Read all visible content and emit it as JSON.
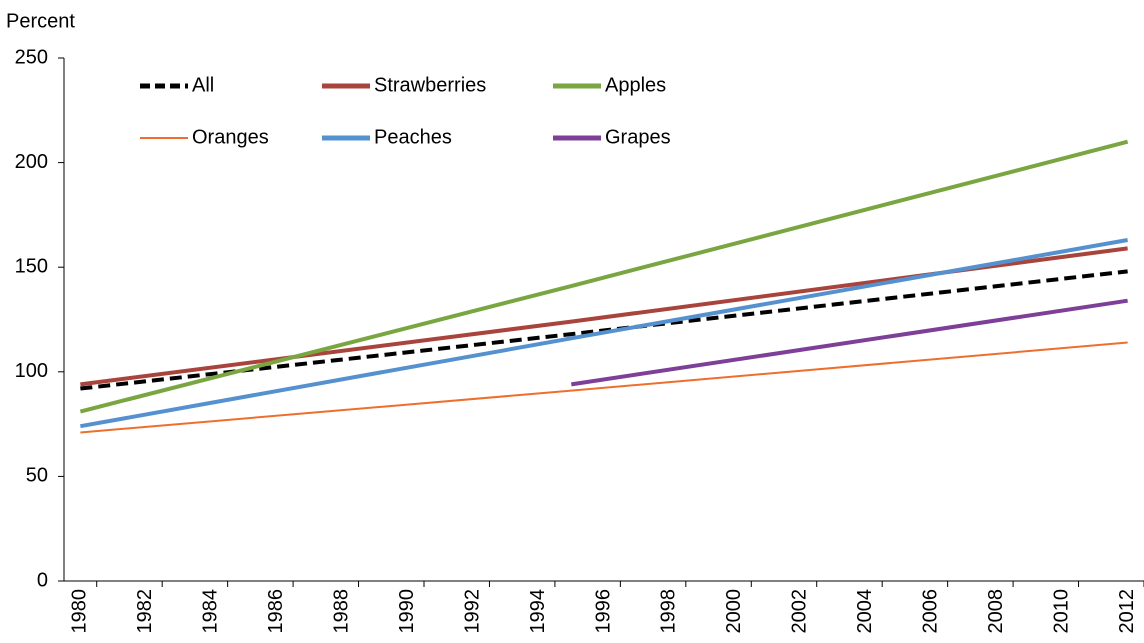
{
  "chart_data": {
    "type": "line",
    "y_label": "Percent",
    "x": [
      1980,
      1995,
      2012
    ],
    "xlim": [
      1979.5,
      2012.5
    ],
    "xticks": [
      1980,
      1982,
      1984,
      1986,
      1988,
      1990,
      1992,
      1994,
      1996,
      1998,
      2000,
      2002,
      2004,
      2006,
      2008,
      2010,
      2012
    ],
    "ylim": [
      0,
      250
    ],
    "yticks": [
      0,
      50,
      100,
      150,
      200,
      250
    ],
    "grid": false,
    "legend": "top-left",
    "series": [
      {
        "name": "All",
        "color": "#000000",
        "dashed": true,
        "values": [
          92,
          118,
          148
        ]
      },
      {
        "name": "Strawberries",
        "color": "#a9443d",
        "values": [
          94,
          124,
          159
        ]
      },
      {
        "name": "Apples",
        "color": "#7aa642",
        "values": [
          81,
          141,
          210
        ]
      },
      {
        "name": "Oranges",
        "color": "#ee6f2d",
        "values": [
          71,
          91,
          114
        ]
      },
      {
        "name": "Peaches",
        "color": "#5591cf",
        "values": [
          74,
          116,
          163
        ]
      },
      {
        "name": "Grapes",
        "color": "#7d3f98",
        "values": [
          null,
          94,
          134
        ]
      }
    ]
  }
}
